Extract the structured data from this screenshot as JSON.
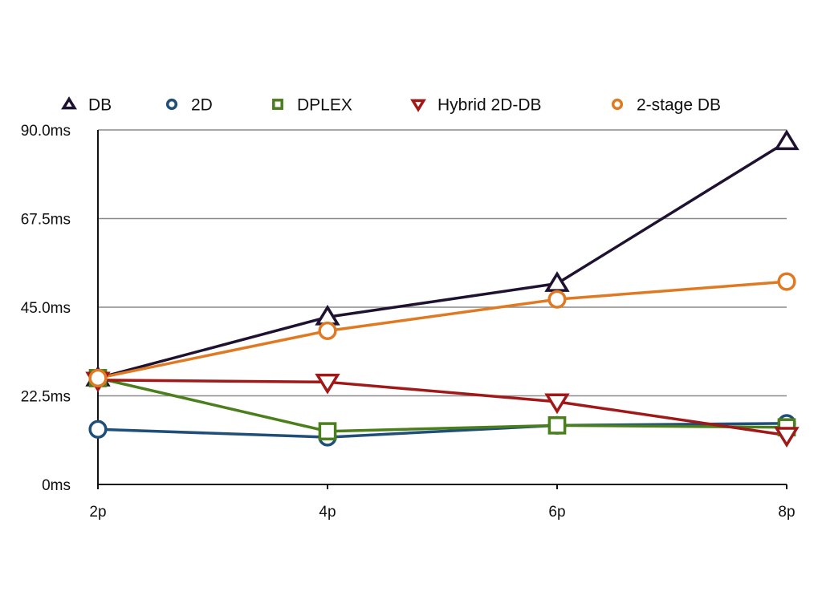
{
  "chart_data": {
    "type": "line",
    "categories": [
      "2p",
      "4p",
      "6p",
      "8p"
    ],
    "y_ticks": [
      "0ms",
      "22.5ms",
      "45.0ms",
      "67.5ms",
      "90.0ms"
    ],
    "ylim": [
      0,
      90
    ],
    "y_unit": "ms",
    "grid": true,
    "legend_position": "top",
    "series": [
      {
        "name": "DB",
        "marker": "triangle-up",
        "color": "#1e1230",
        "values": [
          27,
          42.5,
          51,
          87
        ]
      },
      {
        "name": "2D",
        "marker": "circle",
        "color": "#1f4e79",
        "values": [
          14,
          12,
          15,
          15.5
        ]
      },
      {
        "name": "DPLEX",
        "marker": "square",
        "color": "#4a7f1c",
        "values": [
          27,
          13.5,
          15,
          14.5
        ]
      },
      {
        "name": "Hybrid 2D-DB",
        "marker": "triangle-down",
        "color": "#a01818",
        "values": [
          26.5,
          26,
          21,
          12.5
        ]
      },
      {
        "name": "2-stage DB",
        "marker": "circle",
        "color": "#e07a22",
        "values": [
          27,
          39,
          47,
          51.5
        ]
      }
    ]
  }
}
